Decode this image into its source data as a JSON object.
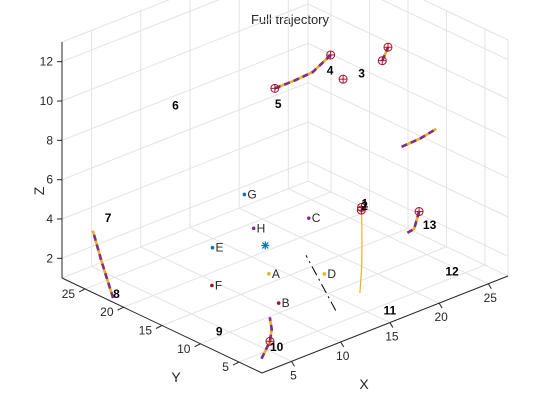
{
  "chart_data": {
    "type": "line",
    "title": "Full trajectory",
    "xlabel": "X",
    "ylabel": "Y",
    "zlabel": "Z",
    "xlim": [
      2,
      27
    ],
    "ylim": [
      2,
      28
    ],
    "zlim": [
      1,
      13
    ],
    "xticks": [
      5,
      10,
      15,
      20,
      25
    ],
    "yticks": [
      5,
      10,
      15,
      20,
      25
    ],
    "zticks": [
      2,
      4,
      6,
      8,
      10,
      12
    ],
    "grid": true,
    "colors": {
      "trajectory": "#EDB120",
      "dashed_segments": "#7E2F8E",
      "reference_line": "#000000",
      "markers": "#A2142F",
      "start_marker": "#0072BD"
    },
    "series": [
      {
        "style": "solid",
        "points": [
          [
            16.8,
            8.2,
            1.0
          ],
          [
            17.6,
            9.0,
            2.0
          ],
          [
            18.1,
            9.6,
            3.0
          ],
          [
            18.4,
            10.0,
            4.0
          ],
          [
            18.6,
            10.3,
            4.6
          ]
        ]
      },
      {
        "style": "dashed",
        "points": [
          [
            20.1,
            7.0,
            8.0
          ],
          [
            22.0,
            7.0,
            8.05
          ],
          [
            24.0,
            7.5,
            8.05
          ]
        ]
      },
      {
        "style": "dashed",
        "points": [
          [
            25.0,
            11.0,
            3.0
          ],
          [
            25.9,
            12.8,
            1.6
          ],
          [
            26.0,
            13.8,
            1.2
          ]
        ]
      },
      {
        "style": "dashed",
        "points": [
          [
            2.5,
            22.0,
            1.0
          ],
          [
            2.6,
            23.6,
            2.5
          ],
          [
            2.8,
            25.0,
            3.8
          ]
        ]
      },
      {
        "style": "dashed",
        "points": [
          [
            20.0,
            16.1,
            11.0
          ],
          [
            17.0,
            14.6,
            11.0
          ],
          [
            15.0,
            14.4,
            11.0
          ],
          [
            13.0,
            14.4,
            11.0
          ]
        ]
      },
      {
        "style": "dashed",
        "points": [
          [
            22.2,
            12.2,
            11.0
          ],
          [
            23.4,
            13.0,
            11.3
          ]
        ]
      },
      {
        "style": "dashed",
        "points": [
          [
            2.5,
            2.7,
            1.5
          ],
          [
            5.0,
            4.8,
            1.5
          ],
          [
            6.5,
            6.5,
            1.5
          ],
          [
            7.8,
            8.4,
            1.5
          ]
        ]
      },
      {
        "style": "dash-dot",
        "points": [
          [
            13.4,
            7.0,
            1.0
          ],
          [
            18.2,
            17.0,
            1.0
          ]
        ]
      }
    ],
    "markers": [
      {
        "label": "1",
        "type": "circle-plus",
        "point": [
          18.6,
          10.3,
          4.6
        ]
      },
      {
        "label": "2",
        "type": "circle-plus",
        "point": [
          18.5,
          10.2,
          4.5
        ]
      },
      {
        "label": "3",
        "type": "circle-plus",
        "point": [
          22.2,
          12.2,
          11.0
        ]
      },
      {
        "label": "4",
        "type": "circle-plus",
        "point": [
          20.0,
          16.1,
          11.0
        ]
      },
      {
        "label": "5",
        "type": "circle-plus",
        "point": [
          13.0,
          14.4,
          11.0
        ]
      },
      {
        "label": "10",
        "type": "circle-plus",
        "point": [
          5.0,
          4.8,
          1.5
        ]
      },
      {
        "label": "13",
        "type": "circle-plus",
        "point": [
          25.0,
          11.0,
          3.0
        ]
      },
      {
        "label": "",
        "type": "circle-plus",
        "point": [
          23.4,
          13.0,
          11.3
        ]
      },
      {
        "label": "",
        "type": "circle-plus",
        "point": [
          19.7,
          14.1,
          10.2
        ]
      },
      {
        "label": "start",
        "type": "asterisk",
        "point": [
          12.5,
          15.0,
          3.0
        ]
      }
    ],
    "annotations": [
      {
        "text": "1",
        "point": [
          18.6,
          10.3,
          4.6
        ],
        "bold": true
      },
      {
        "text": "2",
        "point": [
          18.5,
          10.2,
          4.5
        ],
        "bold": true
      },
      {
        "text": "3",
        "point": [
          20.3,
          12.9,
          10.4
        ],
        "bold": true
      },
      {
        "text": "4",
        "point": [
          18.9,
          15.2,
          10.4
        ],
        "bold": true
      },
      {
        "text": "5",
        "point": [
          13.0,
          14.4,
          10.0
        ],
        "bold": true
      },
      {
        "text": "6",
        "point": [
          7.1,
          20.2,
          10.0
        ],
        "bold": true
      },
      {
        "text": "7",
        "point": [
          4.0,
          25.0,
          4.0
        ],
        "bold": true
      },
      {
        "text": "8",
        "point": [
          2.5,
          22.0,
          1.0
        ],
        "bold": true
      },
      {
        "text": "9",
        "point": [
          3.8,
          10.3,
          1.0
        ],
        "bold": true
      },
      {
        "text": "10",
        "point": [
          5.0,
          4.8,
          1.0
        ],
        "bold": true
      },
      {
        "text": "11",
        "point": [
          15.6,
          3.6,
          1.0
        ],
        "bold": true
      },
      {
        "text": "12",
        "point": [
          23.6,
          5.8,
          1.0
        ],
        "bold": true
      },
      {
        "text": "13",
        "point": [
          25.7,
          11.4,
          1.9
        ],
        "bold": true
      },
      {
        "text": "A",
        "point": [
          11.6,
          13.0,
          1.9
        ],
        "bold": false
      },
      {
        "text": "B",
        "point": [
          10.8,
          10.7,
          1.0
        ],
        "bold": false
      },
      {
        "text": "C",
        "point": [
          15.5,
          12.8,
          4.0
        ],
        "bold": false
      },
      {
        "text": "D",
        "point": [
          14.9,
          10.0,
          1.8
        ],
        "bold": false
      },
      {
        "text": "E",
        "point": [
          9.0,
          17.0,
          3.0
        ],
        "bold": false
      },
      {
        "text": "F",
        "point": [
          8.0,
          15.8,
          1.5
        ],
        "bold": false
      },
      {
        "text": "G",
        "point": [
          12.4,
          17.2,
          5.0
        ],
        "bold": false
      },
      {
        "text": "H",
        "point": [
          12.4,
          16.0,
          3.5
        ],
        "bold": false
      }
    ]
  }
}
